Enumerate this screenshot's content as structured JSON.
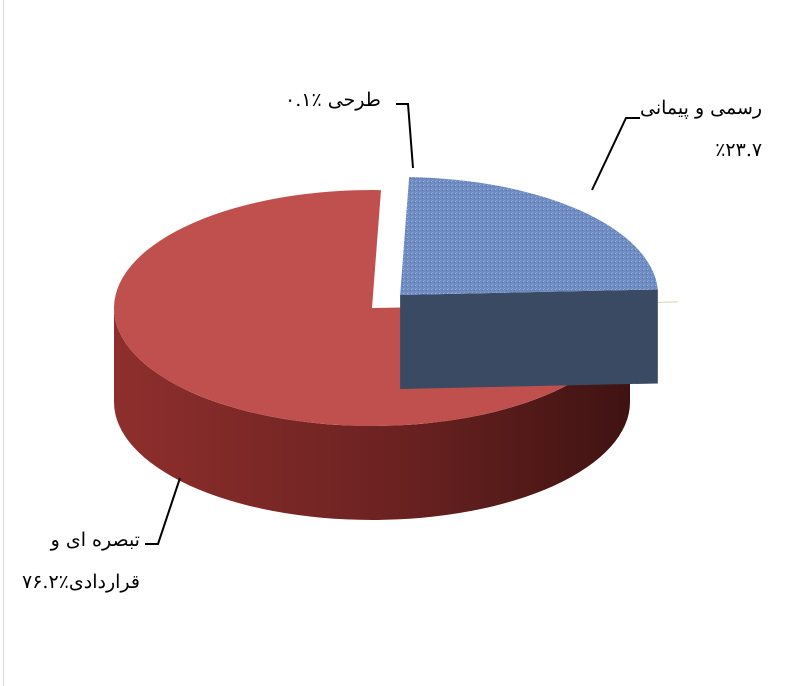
{
  "chart_data": {
    "type": "pie",
    "style": "3d-exploded",
    "slices": [
      {
        "label": "رسمی و پیمانی",
        "value": 23.7,
        "value_text": "٪۲۳.۷",
        "color": "#6f8cc2",
        "side_color": "#3b4a63"
      },
      {
        "label": "طرحی",
        "value": 0.1,
        "value_text": "٪۰.۱",
        "color": "#c2c48a",
        "side_color": "#7f8150"
      },
      {
        "label": "تبصره ای و قراردادی",
        "label_lines": [
          "تبصره ای و",
          "قراردادی"
        ],
        "value": 76.2,
        "value_text": "٪۷۶.۲",
        "color": "#c0504d",
        "side_color": "#7a2524"
      }
    ],
    "legend": "none"
  }
}
